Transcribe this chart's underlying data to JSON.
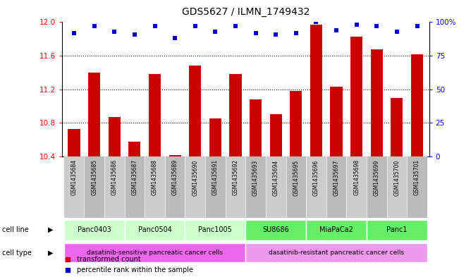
{
  "title": "GDS5627 / ILMN_1749432",
  "samples": [
    "GSM1435684",
    "GSM1435685",
    "GSM1435686",
    "GSM1435687",
    "GSM1435688",
    "GSM1435689",
    "GSM1435690",
    "GSM1435691",
    "GSM1435692",
    "GSM1435693",
    "GSM1435694",
    "GSM1435695",
    "GSM1435696",
    "GSM1435697",
    "GSM1435698",
    "GSM1435699",
    "GSM1435700",
    "GSM1435701"
  ],
  "bar_values": [
    10.73,
    11.4,
    10.87,
    10.58,
    11.38,
    10.42,
    11.48,
    10.85,
    11.38,
    11.08,
    10.9,
    11.18,
    11.97,
    11.23,
    11.83,
    11.68,
    11.1,
    11.62
  ],
  "percentile_values": [
    92,
    97,
    93,
    91,
    97,
    88,
    97,
    93,
    97,
    92,
    91,
    92,
    100,
    94,
    98,
    97,
    93,
    97
  ],
  "bar_color": "#cc0000",
  "dot_color": "#0000cc",
  "ylim_left": [
    10.4,
    12.0
  ],
  "ylim_right": [
    0,
    100
  ],
  "yticks_left": [
    10.4,
    10.8,
    11.2,
    11.6,
    12.0
  ],
  "ytick_labels_right": [
    "0",
    "25",
    "50",
    "75",
    "100%"
  ],
  "yticks_right": [
    0,
    25,
    50,
    75,
    100
  ],
  "cell_lines": [
    {
      "name": "Panc0403",
      "start": 0,
      "end": 2,
      "color": "#ccffcc"
    },
    {
      "name": "Panc0504",
      "start": 3,
      "end": 5,
      "color": "#ccffcc"
    },
    {
      "name": "Panc1005",
      "start": 6,
      "end": 8,
      "color": "#ccffcc"
    },
    {
      "name": "SU8686",
      "start": 9,
      "end": 11,
      "color": "#66ee66"
    },
    {
      "name": "MiaPaCa2",
      "start": 12,
      "end": 14,
      "color": "#66ee66"
    },
    {
      "name": "Panc1",
      "start": 15,
      "end": 17,
      "color": "#66ee66"
    }
  ],
  "cell_types": [
    {
      "name": "dasatinib-sensitive pancreatic cancer cells",
      "start": 0,
      "end": 8,
      "color": "#ee66ee"
    },
    {
      "name": "dasatinib-resistant pancreatic cancer cells",
      "start": 9,
      "end": 17,
      "color": "#ee99ee"
    }
  ],
  "legend_bar_label": "transformed count",
  "legend_dot_label": "percentile rank within the sample",
  "cell_line_label": "cell line",
  "cell_type_label": "cell type",
  "background_color": "#ffffff",
  "col_bg_even": "#cccccc",
  "col_bg_odd": "#bbbbbb",
  "grid_color": "#000000"
}
